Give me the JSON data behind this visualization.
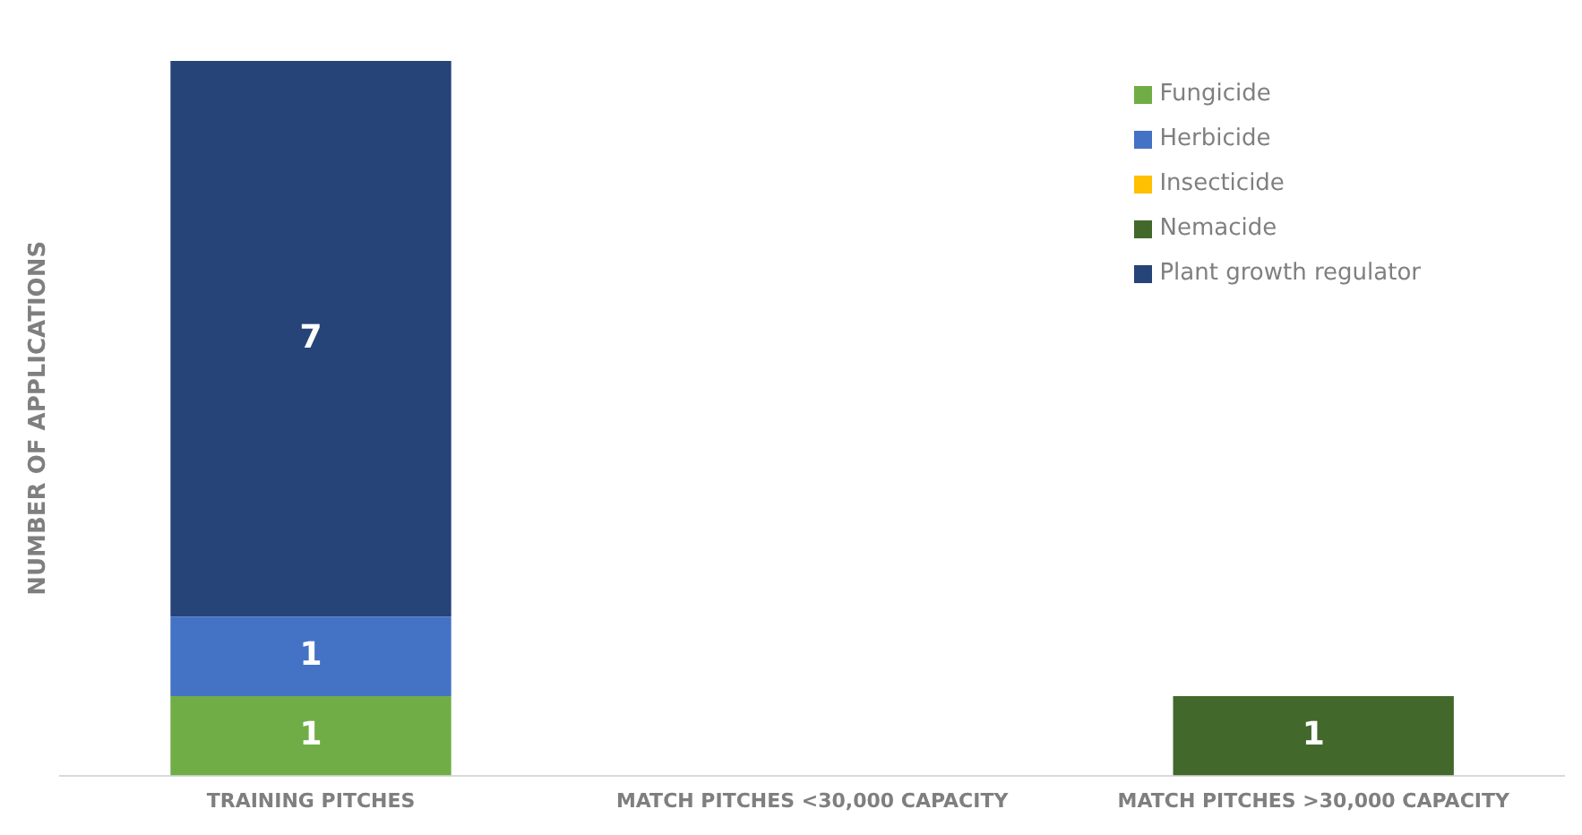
{
  "chart_data": {
    "type": "bar",
    "stacked": true,
    "ylabel": "NUMBER OF APPLICATIONS",
    "categories": [
      "TRAINING PITCHES",
      "MATCH PITCHES <30,000 CAPACITY",
      "MATCH PITCHES >30,000 CAPACITY"
    ],
    "ylim": [
      0,
      9
    ],
    "tick_labels": "x",
    "grid": false,
    "legend": "top right",
    "series": [
      {
        "name": "Fungicide",
        "color": "#70ad47",
        "values": [
          1,
          null,
          null
        ],
        "value_labels": [
          "1",
          null,
          null
        ]
      },
      {
        "name": "Herbicide",
        "color": "#4472c4",
        "values": [
          1,
          null,
          null
        ],
        "value_labels": [
          "1",
          null,
          null
        ]
      },
      {
        "name": "Insecticide",
        "color": "#ffc000",
        "values": [
          null,
          null,
          null
        ],
        "value_labels": [
          null,
          null,
          null
        ]
      },
      {
        "name": "Nemacide",
        "color": "#43682b",
        "values": [
          null,
          null,
          1
        ],
        "value_labels": [
          null,
          null,
          "1"
        ]
      },
      {
        "name": "Plant growth regulator",
        "color": "#264478",
        "values": [
          7,
          null,
          null
        ],
        "value_labels": [
          "7",
          null,
          null
        ]
      }
    ]
  }
}
